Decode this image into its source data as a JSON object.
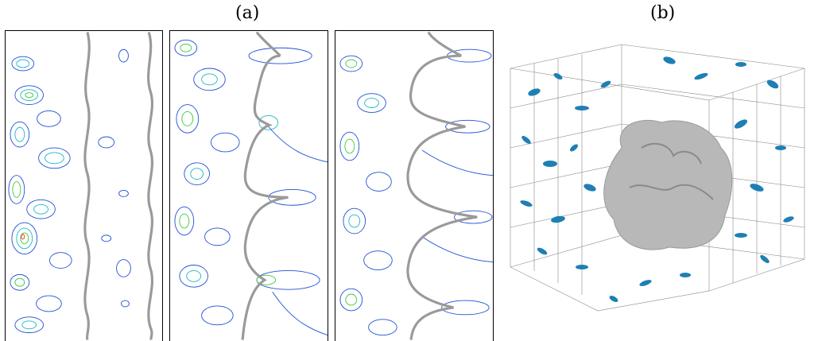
{
  "figure": {
    "label_a": "(a)",
    "label_b": "(b)"
  },
  "panels": [
    {
      "id": "panel-1",
      "interface": "front-wavy"
    },
    {
      "id": "panel-2",
      "interface": "front-cusped"
    },
    {
      "id": "panel-3",
      "interface": "front-fingered"
    }
  ],
  "colors": {
    "interface": "#9a9a9a",
    "contour_low": "#1f4fd6",
    "contour_mid": "#18b8c8",
    "contour_high": "#3ec83a",
    "contour_peak": "#e03020",
    "vortex_blobs": "#1e7fb4",
    "droplet": "#b8b8b8",
    "grid_lines": "#888888"
  }
}
